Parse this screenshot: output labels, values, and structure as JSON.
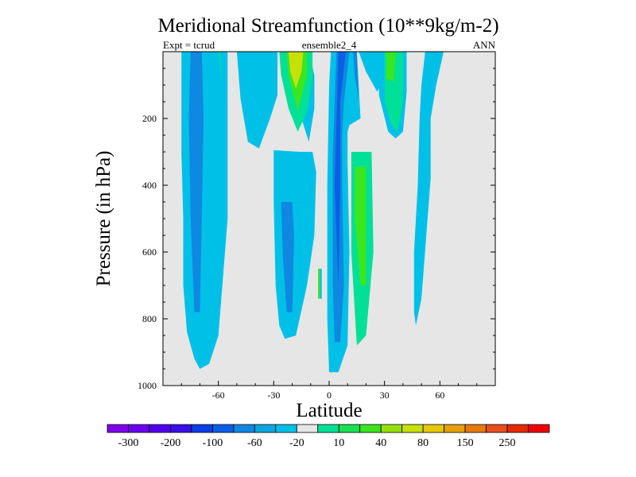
{
  "chart_data": {
    "type": "contour",
    "title": "Meridional Streamfunction (10**9kg/m-2)",
    "subtitle_left": "Expt = tcrud",
    "subtitle_center": "ensemble2_4",
    "subtitle_right": "ANN",
    "xlabel": "Latitude",
    "ylabel": "Pressure (in hPa)",
    "xlim": [
      -90,
      90
    ],
    "ylim": [
      1000,
      0
    ],
    "x_ticks": [
      -60,
      -30,
      0,
      30,
      60
    ],
    "y_ticks": [
      200,
      400,
      600,
      800,
      1000
    ],
    "background_color": "#e6e6e6",
    "colorbar": {
      "colors": [
        "#7f00ea",
        "#6a00ee",
        "#5200ec",
        "#3a0fe8",
        "#0c3ee6",
        "#0b5fe6",
        "#0e88e0",
        "#0aa6e0",
        "#00c0e8",
        "#e6e6e6",
        "#00e096",
        "#18e050",
        "#3ce61e",
        "#96e00a",
        "#c8e00a",
        "#e6c80a",
        "#e6a00a",
        "#e67a0a",
        "#e6501e",
        "#e62a00",
        "#ee0000"
      ],
      "labels": [
        "-300",
        "-200",
        "-100",
        "-60",
        "-20",
        "10",
        "40",
        "80",
        "150",
        "250"
      ]
    },
    "regions": [
      {
        "level": -20,
        "lat": [
          -78,
          -70,
          -67,
          -60,
          -55,
          -55,
          -60,
          -65,
          -70,
          -73,
          -77,
          -79,
          -79,
          -80,
          -80
        ],
        "p": [
          0,
          0,
          0,
          0,
          0,
          500,
          850,
          935,
          950,
          920,
          840,
          700,
          500,
          300,
          0
        ]
      },
      {
        "level": -60,
        "lat": [
          -75,
          -69,
          -68,
          -69,
          -70,
          -73,
          -75,
          -76
        ],
        "p": [
          0,
          0,
          200,
          500,
          780,
          780,
          500,
          200
        ]
      },
      {
        "level": -20,
        "lat": [
          -60,
          -58,
          -57,
          -59
        ],
        "p": [
          0,
          0,
          140,
          270
        ]
      },
      {
        "level": 10,
        "lat": [
          -60,
          -59,
          -58
        ],
        "p": [
          0,
          0,
          100
        ]
      },
      {
        "level": -20,
        "lat": [
          -50,
          -28,
          -28,
          -32,
          -38,
          -44,
          -48
        ],
        "p": [
          0,
          0,
          130,
          200,
          290,
          270,
          140
        ]
      },
      {
        "level": -20,
        "lat": [
          -13,
          -11,
          -8,
          -8,
          -11,
          -15,
          -15
        ],
        "p": [
          0,
          0,
          70,
          170,
          270,
          200,
          80
        ]
      },
      {
        "level": 10,
        "lat": [
          -27,
          -9,
          -9,
          -12,
          -17,
          -22,
          -26
        ],
        "p": [
          0,
          0,
          80,
          180,
          240,
          170,
          70
        ]
      },
      {
        "level": 40,
        "lat": [
          -23,
          -12,
          -12,
          -17,
          -22
        ],
        "p": [
          0,
          0,
          70,
          180,
          70
        ]
      },
      {
        "level": 80,
        "lat": [
          -22,
          -14,
          -15,
          -18,
          -21
        ],
        "p": [
          0,
          0,
          60,
          110,
          60
        ]
      },
      {
        "level": -20,
        "lat": [
          -30,
          -16,
          -9,
          -7,
          -8,
          -12,
          -18,
          -24,
          -27,
          -29,
          -30
        ],
        "p": [
          295,
          300,
          300,
          360,
          550,
          700,
          850,
          860,
          820,
          700,
          450
        ]
      },
      {
        "level": -60,
        "lat": [
          -26,
          -20,
          -19,
          -20,
          -23,
          -25
        ],
        "p": [
          450,
          450,
          550,
          780,
          780,
          620
        ]
      },
      {
        "level": -20,
        "lat": [
          -5,
          -4,
          -4,
          -5
        ],
        "p": [
          650,
          650,
          740,
          740
        ]
      },
      {
        "level": 40,
        "lat": [
          -6,
          -5,
          -5,
          -6
        ],
        "p": [
          650,
          650,
          740,
          740
        ]
      },
      {
        "level": -20,
        "lat": [
          1,
          12,
          15,
          17,
          11,
          10,
          10,
          11,
          10,
          5,
          0,
          -1,
          -1,
          0
        ],
        "p": [
          0,
          0,
          0,
          200,
          220,
          240,
          330,
          600,
          880,
          960,
          960,
          800,
          400,
          100
        ]
      },
      {
        "level": -60,
        "lat": [
          4,
          11,
          8,
          7,
          7,
          8,
          6,
          3,
          2,
          2
        ],
        "p": [
          0,
          0,
          150,
          250,
          400,
          700,
          870,
          870,
          700,
          300
        ]
      },
      {
        "level": -100,
        "lat": [
          5,
          9,
          6,
          6,
          5,
          3
        ],
        "p": [
          0,
          0,
          150,
          400,
          700,
          400
        ]
      },
      {
        "level": -60,
        "lat": [
          13,
          15,
          16,
          14
        ],
        "p": [
          0,
          0,
          140,
          80
        ]
      },
      {
        "level": 10,
        "lat": [
          12,
          23,
          24,
          20,
          15,
          12
        ],
        "p": [
          300,
          300,
          600,
          850,
          880,
          600
        ]
      },
      {
        "level": 40,
        "lat": [
          14,
          20,
          20,
          17,
          14
        ],
        "p": [
          345,
          345,
          700,
          700,
          500
        ]
      },
      {
        "level": -20,
        "lat": [
          16,
          28,
          28,
          26,
          20
        ],
        "p": [
          0,
          0,
          100,
          120,
          60
        ]
      },
      {
        "level": -20,
        "lat": [
          27,
          42,
          42,
          40,
          36,
          32,
          27
        ],
        "p": [
          0,
          0,
          120,
          240,
          260,
          240,
          130
        ]
      },
      {
        "level": 10,
        "lat": [
          30,
          40,
          40,
          37,
          34,
          30
        ],
        "p": [
          0,
          0,
          150,
          240,
          220,
          150
        ]
      },
      {
        "level": 40,
        "lat": [
          31,
          36,
          35,
          31
        ],
        "p": [
          0,
          0,
          90,
          80
        ]
      },
      {
        "level": -20,
        "lat": [
          52,
          62,
          62,
          58,
          55,
          55,
          50,
          47,
          46,
          46,
          48,
          49,
          50
        ],
        "p": [
          0,
          0,
          0,
          100,
          200,
          380,
          740,
          820,
          780,
          600,
          400,
          200,
          100
        ]
      }
    ]
  }
}
